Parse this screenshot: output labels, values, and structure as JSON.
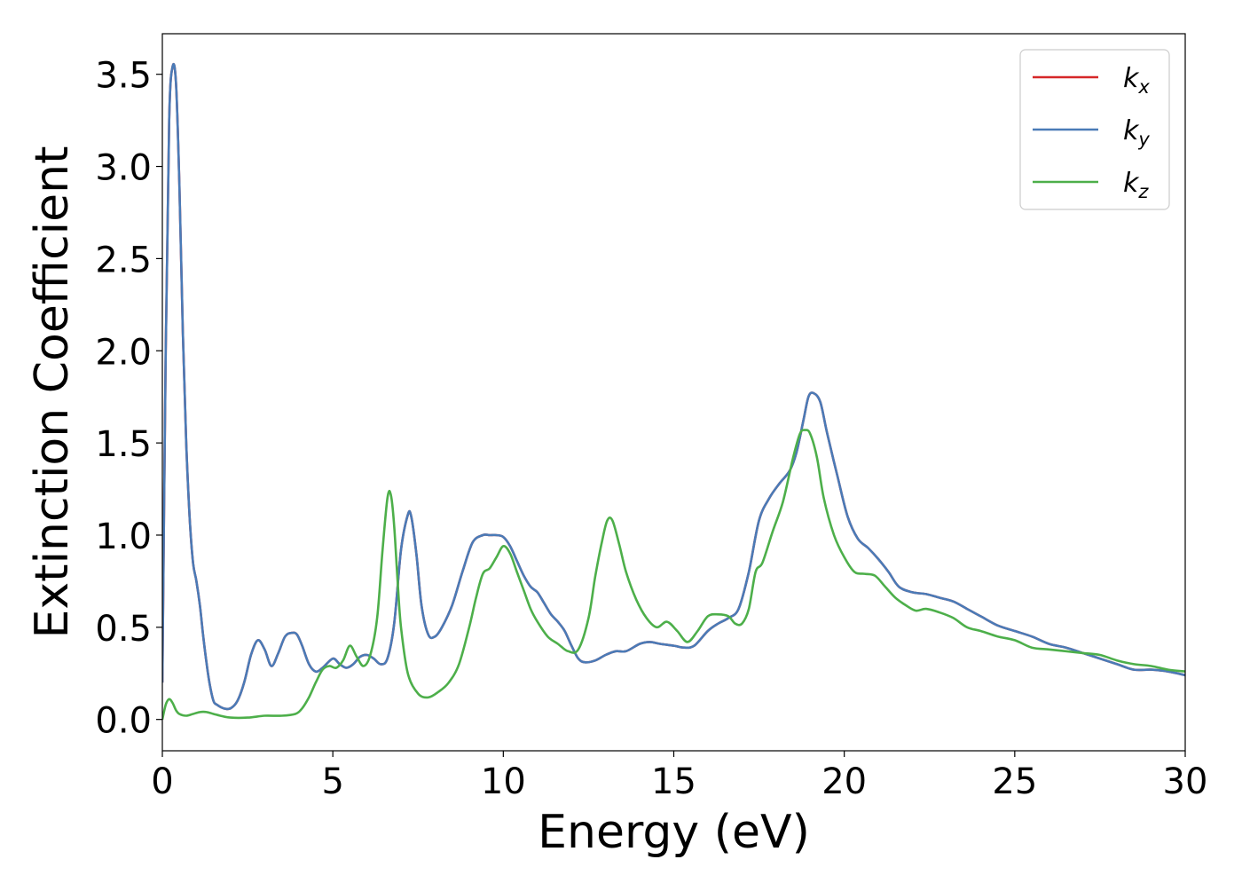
{
  "chart_data": {
    "type": "line",
    "title": "",
    "xlabel": "Energy (eV)",
    "ylabel": "Extinction Coefficient",
    "xlim": [
      0,
      30
    ],
    "ylim": [
      -0.17,
      3.72
    ],
    "x_ticks": [
      0,
      5,
      10,
      15,
      20,
      25,
      30
    ],
    "y_ticks": [
      0.0,
      0.5,
      1.0,
      1.5,
      2.0,
      2.5,
      3.0,
      3.5
    ],
    "x_tick_labels": [
      "0",
      "5",
      "10",
      "15",
      "20",
      "25",
      "30"
    ],
    "y_tick_labels": [
      "0.0",
      "0.5",
      "1.0",
      "1.5",
      "2.0",
      "2.5",
      "3.0",
      "3.5"
    ],
    "grid": false,
    "legend_position": "top-right",
    "series": [
      {
        "name": "k_x",
        "legend_base": "k",
        "legend_sub": "x",
        "color": "#d62728",
        "x": [
          0,
          0.1,
          0.2,
          0.3,
          0.4,
          0.5,
          0.6,
          0.7,
          0.8,
          0.9,
          1.0,
          1.1,
          1.2,
          1.3,
          1.4,
          1.5,
          1.6,
          1.8,
          2.0,
          2.2,
          2.4,
          2.6,
          2.8,
          3.0,
          3.2,
          3.4,
          3.6,
          3.8,
          3.95,
          4.1,
          4.3,
          4.5,
          4.7,
          5.0,
          5.2,
          5.4,
          5.6,
          5.8,
          6.0,
          6.2,
          6.4,
          6.6,
          6.8,
          7.0,
          7.2,
          7.3,
          7.45,
          7.6,
          7.8,
          8.0,
          8.2,
          8.5,
          8.8,
          9.1,
          9.4,
          9.6,
          9.8,
          10.0,
          10.2,
          10.4,
          10.6,
          10.8,
          11.0,
          11.2,
          11.4,
          11.6,
          11.8,
          12.0,
          12.2,
          12.4,
          12.7,
          13.0,
          13.3,
          13.6,
          14.0,
          14.3,
          14.6,
          15.0,
          15.3,
          15.6,
          16.0,
          16.3,
          16.6,
          16.9,
          17.2,
          17.5,
          17.8,
          18.1,
          18.4,
          18.6,
          18.8,
          18.95,
          19.1,
          19.3,
          19.5,
          19.8,
          20.1,
          20.4,
          20.7,
          21.0,
          21.3,
          21.6,
          22.0,
          22.4,
          22.8,
          23.2,
          23.6,
          24.0,
          24.5,
          25.0,
          25.5,
          26.0,
          26.5,
          27.0,
          27.5,
          28.0,
          28.5,
          29.0,
          29.5,
          30.0
        ],
        "y": [
          0.2,
          2.0,
          3.25,
          3.54,
          3.45,
          2.9,
          2.1,
          1.5,
          1.1,
          0.85,
          0.75,
          0.62,
          0.45,
          0.3,
          0.18,
          0.1,
          0.08,
          0.06,
          0.06,
          0.1,
          0.2,
          0.35,
          0.43,
          0.38,
          0.29,
          0.36,
          0.45,
          0.47,
          0.46,
          0.4,
          0.3,
          0.26,
          0.28,
          0.33,
          0.3,
          0.28,
          0.3,
          0.34,
          0.35,
          0.33,
          0.3,
          0.33,
          0.52,
          0.92,
          1.11,
          1.1,
          0.9,
          0.62,
          0.46,
          0.45,
          0.5,
          0.62,
          0.8,
          0.96,
          1.0,
          1.0,
          1.0,
          0.99,
          0.94,
          0.86,
          0.78,
          0.72,
          0.69,
          0.63,
          0.57,
          0.53,
          0.48,
          0.4,
          0.33,
          0.31,
          0.32,
          0.35,
          0.37,
          0.37,
          0.41,
          0.42,
          0.41,
          0.4,
          0.39,
          0.4,
          0.48,
          0.52,
          0.55,
          0.6,
          0.8,
          1.08,
          1.2,
          1.28,
          1.35,
          1.45,
          1.62,
          1.75,
          1.77,
          1.72,
          1.55,
          1.32,
          1.1,
          0.98,
          0.93,
          0.87,
          0.8,
          0.72,
          0.69,
          0.68,
          0.66,
          0.64,
          0.6,
          0.56,
          0.51,
          0.48,
          0.45,
          0.41,
          0.39,
          0.36,
          0.33,
          0.3,
          0.27,
          0.27,
          0.26,
          0.24
        ]
      },
      {
        "name": "k_y",
        "legend_base": "k",
        "legend_sub": "y",
        "color": "#4a7bb7",
        "x": [
          0,
          0.1,
          0.2,
          0.3,
          0.4,
          0.5,
          0.6,
          0.7,
          0.8,
          0.9,
          1.0,
          1.1,
          1.2,
          1.3,
          1.4,
          1.5,
          1.6,
          1.8,
          2.0,
          2.2,
          2.4,
          2.6,
          2.8,
          3.0,
          3.2,
          3.4,
          3.6,
          3.8,
          3.95,
          4.1,
          4.3,
          4.5,
          4.7,
          5.0,
          5.2,
          5.4,
          5.6,
          5.8,
          6.0,
          6.2,
          6.4,
          6.6,
          6.8,
          7.0,
          7.2,
          7.3,
          7.45,
          7.6,
          7.8,
          8.0,
          8.2,
          8.5,
          8.8,
          9.1,
          9.4,
          9.6,
          9.8,
          10.0,
          10.2,
          10.4,
          10.6,
          10.8,
          11.0,
          11.2,
          11.4,
          11.6,
          11.8,
          12.0,
          12.2,
          12.4,
          12.7,
          13.0,
          13.3,
          13.6,
          14.0,
          14.3,
          14.6,
          15.0,
          15.3,
          15.6,
          16.0,
          16.3,
          16.6,
          16.9,
          17.2,
          17.5,
          17.8,
          18.1,
          18.4,
          18.6,
          18.8,
          18.95,
          19.1,
          19.3,
          19.5,
          19.8,
          20.1,
          20.4,
          20.7,
          21.0,
          21.3,
          21.6,
          22.0,
          22.4,
          22.8,
          23.2,
          23.6,
          24.0,
          24.5,
          25.0,
          25.5,
          26.0,
          26.5,
          27.0,
          27.5,
          28.0,
          28.5,
          29.0,
          29.5,
          30.0
        ],
        "y": [
          0.2,
          2.0,
          3.25,
          3.54,
          3.45,
          2.9,
          2.1,
          1.5,
          1.1,
          0.85,
          0.75,
          0.62,
          0.45,
          0.3,
          0.18,
          0.1,
          0.08,
          0.06,
          0.06,
          0.1,
          0.2,
          0.35,
          0.43,
          0.38,
          0.29,
          0.36,
          0.45,
          0.47,
          0.46,
          0.4,
          0.3,
          0.26,
          0.28,
          0.33,
          0.3,
          0.28,
          0.3,
          0.34,
          0.35,
          0.33,
          0.3,
          0.33,
          0.52,
          0.92,
          1.11,
          1.1,
          0.9,
          0.62,
          0.46,
          0.45,
          0.5,
          0.62,
          0.8,
          0.96,
          1.0,
          1.0,
          1.0,
          0.99,
          0.94,
          0.86,
          0.78,
          0.72,
          0.69,
          0.63,
          0.57,
          0.53,
          0.48,
          0.4,
          0.33,
          0.31,
          0.32,
          0.35,
          0.37,
          0.37,
          0.41,
          0.42,
          0.41,
          0.4,
          0.39,
          0.4,
          0.48,
          0.52,
          0.55,
          0.6,
          0.8,
          1.08,
          1.2,
          1.28,
          1.35,
          1.45,
          1.62,
          1.75,
          1.77,
          1.72,
          1.55,
          1.32,
          1.1,
          0.98,
          0.93,
          0.87,
          0.8,
          0.72,
          0.69,
          0.68,
          0.66,
          0.64,
          0.6,
          0.56,
          0.51,
          0.48,
          0.45,
          0.41,
          0.39,
          0.36,
          0.33,
          0.3,
          0.27,
          0.27,
          0.26,
          0.24
        ]
      },
      {
        "name": "k_z",
        "legend_base": "k",
        "legend_sub": "z",
        "color": "#4daf4a",
        "x": [
          0,
          0.1,
          0.2,
          0.3,
          0.4,
          0.5,
          0.7,
          0.9,
          1.1,
          1.3,
          1.5,
          1.7,
          2.0,
          2.5,
          3.0,
          3.5,
          3.9,
          4.1,
          4.3,
          4.5,
          4.7,
          4.9,
          5.1,
          5.3,
          5.5,
          5.7,
          5.9,
          6.1,
          6.3,
          6.45,
          6.6,
          6.7,
          6.8,
          6.9,
          7.0,
          7.2,
          7.5,
          7.8,
          8.1,
          8.4,
          8.7,
          9.0,
          9.2,
          9.4,
          9.6,
          9.8,
          10.0,
          10.2,
          10.4,
          10.6,
          10.8,
          11.0,
          11.3,
          11.6,
          11.9,
          12.2,
          12.5,
          12.7,
          12.9,
          13.05,
          13.2,
          13.4,
          13.6,
          13.9,
          14.2,
          14.5,
          14.8,
          15.1,
          15.4,
          15.7,
          16.0,
          16.3,
          16.6,
          16.8,
          17.0,
          17.2,
          17.4,
          17.6,
          17.9,
          18.2,
          18.5,
          18.7,
          18.85,
          19.0,
          19.2,
          19.4,
          19.7,
          20.0,
          20.3,
          20.6,
          20.9,
          21.2,
          21.5,
          21.8,
          22.1,
          22.4,
          22.8,
          23.2,
          23.6,
          24.0,
          24.5,
          25.0,
          25.5,
          26.0,
          26.5,
          27.0,
          27.5,
          28.0,
          28.5,
          29.0,
          29.5,
          30.0
        ],
        "y": [
          0.0,
          0.08,
          0.11,
          0.09,
          0.05,
          0.03,
          0.02,
          0.03,
          0.04,
          0.04,
          0.03,
          0.02,
          0.01,
          0.01,
          0.02,
          0.02,
          0.03,
          0.06,
          0.12,
          0.2,
          0.27,
          0.29,
          0.28,
          0.32,
          0.4,
          0.34,
          0.29,
          0.35,
          0.55,
          0.9,
          1.2,
          1.22,
          1.05,
          0.75,
          0.5,
          0.25,
          0.14,
          0.12,
          0.15,
          0.2,
          0.3,
          0.5,
          0.66,
          0.79,
          0.82,
          0.88,
          0.94,
          0.9,
          0.8,
          0.7,
          0.6,
          0.53,
          0.45,
          0.41,
          0.37,
          0.38,
          0.55,
          0.78,
          0.97,
          1.08,
          1.08,
          0.95,
          0.8,
          0.65,
          0.55,
          0.5,
          0.53,
          0.48,
          0.42,
          0.48,
          0.56,
          0.57,
          0.56,
          0.52,
          0.52,
          0.6,
          0.8,
          0.85,
          1.02,
          1.18,
          1.42,
          1.55,
          1.57,
          1.55,
          1.42,
          1.2,
          1.0,
          0.88,
          0.8,
          0.79,
          0.78,
          0.72,
          0.66,
          0.62,
          0.59,
          0.6,
          0.58,
          0.55,
          0.5,
          0.48,
          0.45,
          0.43,
          0.39,
          0.38,
          0.37,
          0.36,
          0.35,
          0.32,
          0.3,
          0.29,
          0.27,
          0.26
        ]
      }
    ]
  }
}
